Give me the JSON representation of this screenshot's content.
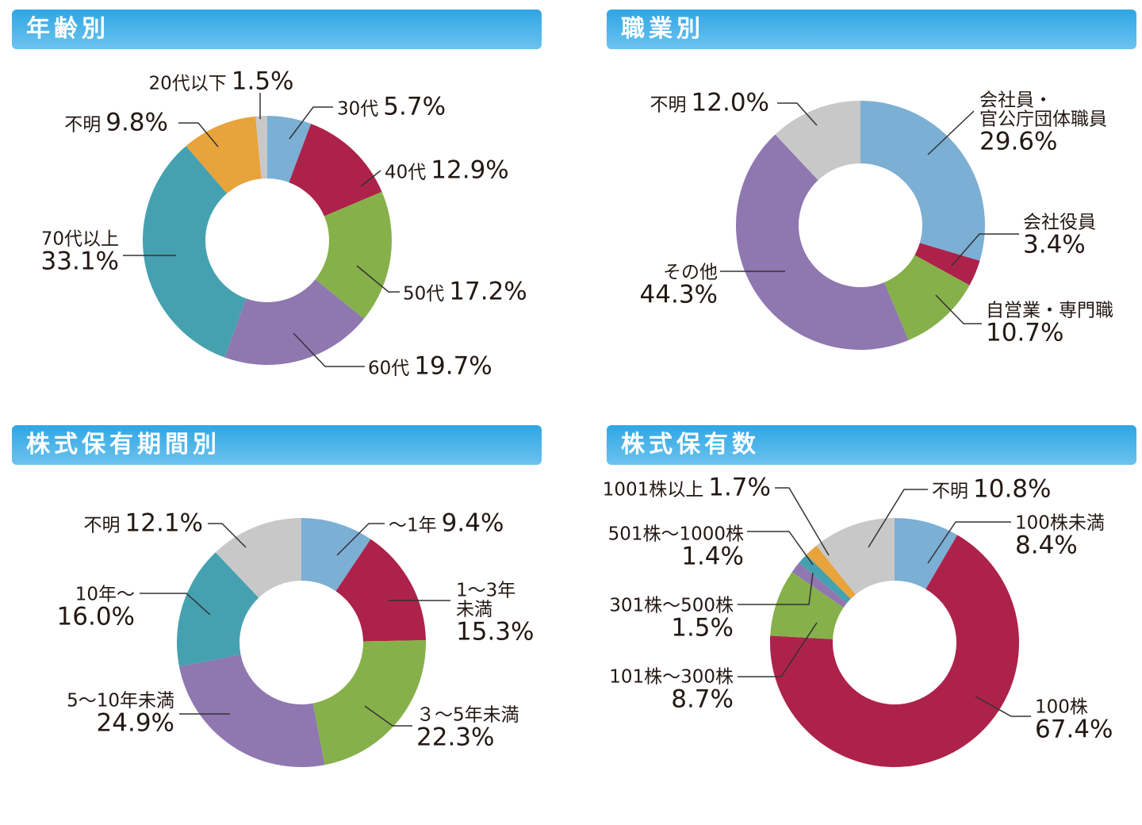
{
  "chart_data": [
    {
      "type": "donut",
      "title": "年齢別",
      "categories": [
        "30代",
        "40代",
        "50代",
        "60代",
        "70代以上",
        "不明",
        "20代以下"
      ],
      "values": [
        5.7,
        12.9,
        17.2,
        19.7,
        33.1,
        9.8,
        1.5
      ],
      "value_labels": [
        "5.7%",
        "12.9%",
        "17.2%",
        "19.7%",
        "33.1%",
        "9.8%",
        "1.5%"
      ],
      "colors": [
        "#7bafd4",
        "#ad224a",
        "#86b04a",
        "#8f77b0",
        "#45a1b0",
        "#e8a33b",
        "#c8c8c8"
      ]
    },
    {
      "type": "donut",
      "title": "職業別",
      "categories": [
        "会社員・\n官公庁団体職員",
        "会社役員",
        "自営業・専門職",
        "その他",
        "不明"
      ],
      "values": [
        29.6,
        3.4,
        10.7,
        44.3,
        12.0
      ],
      "value_labels": [
        "29.6%",
        "3.4%",
        "10.7%",
        "44.3%",
        "12.0%"
      ],
      "colors": [
        "#7bafd4",
        "#ad224a",
        "#86b04a",
        "#8f77b0",
        "#c8c8c8"
      ]
    },
    {
      "type": "donut",
      "title": "株式保有期間別",
      "categories": [
        "〜1年",
        "1〜3年\n未満",
        "３〜5年未満",
        "5〜10年未満",
        "10年〜",
        "不明"
      ],
      "values": [
        9.4,
        15.3,
        22.3,
        24.9,
        16.0,
        12.1
      ],
      "value_labels": [
        "9.4%",
        "15.3%",
        "22.3%",
        "24.9%",
        "16.0%",
        "12.1%"
      ],
      "colors": [
        "#7bafd4",
        "#ad224a",
        "#86b04a",
        "#8f77b0",
        "#45a1b0",
        "#c8c8c8"
      ]
    },
    {
      "type": "donut",
      "title": "株式保有数",
      "categories": [
        "100株未満",
        "100株",
        "101株〜300株",
        "301株〜500株",
        "501株〜1000株",
        "1001株以上",
        "不明"
      ],
      "values": [
        8.4,
        67.4,
        8.7,
        1.5,
        1.4,
        1.7,
        10.8
      ],
      "value_labels": [
        "8.4%",
        "67.4%",
        "8.7%",
        "1.5%",
        "1.4%",
        "1.7%",
        "10.8%"
      ],
      "colors": [
        "#7bafd4",
        "#ad224a",
        "#86b04a",
        "#8f77b0",
        "#45a1b0",
        "#e8a33b",
        "#c8c8c8"
      ]
    }
  ]
}
